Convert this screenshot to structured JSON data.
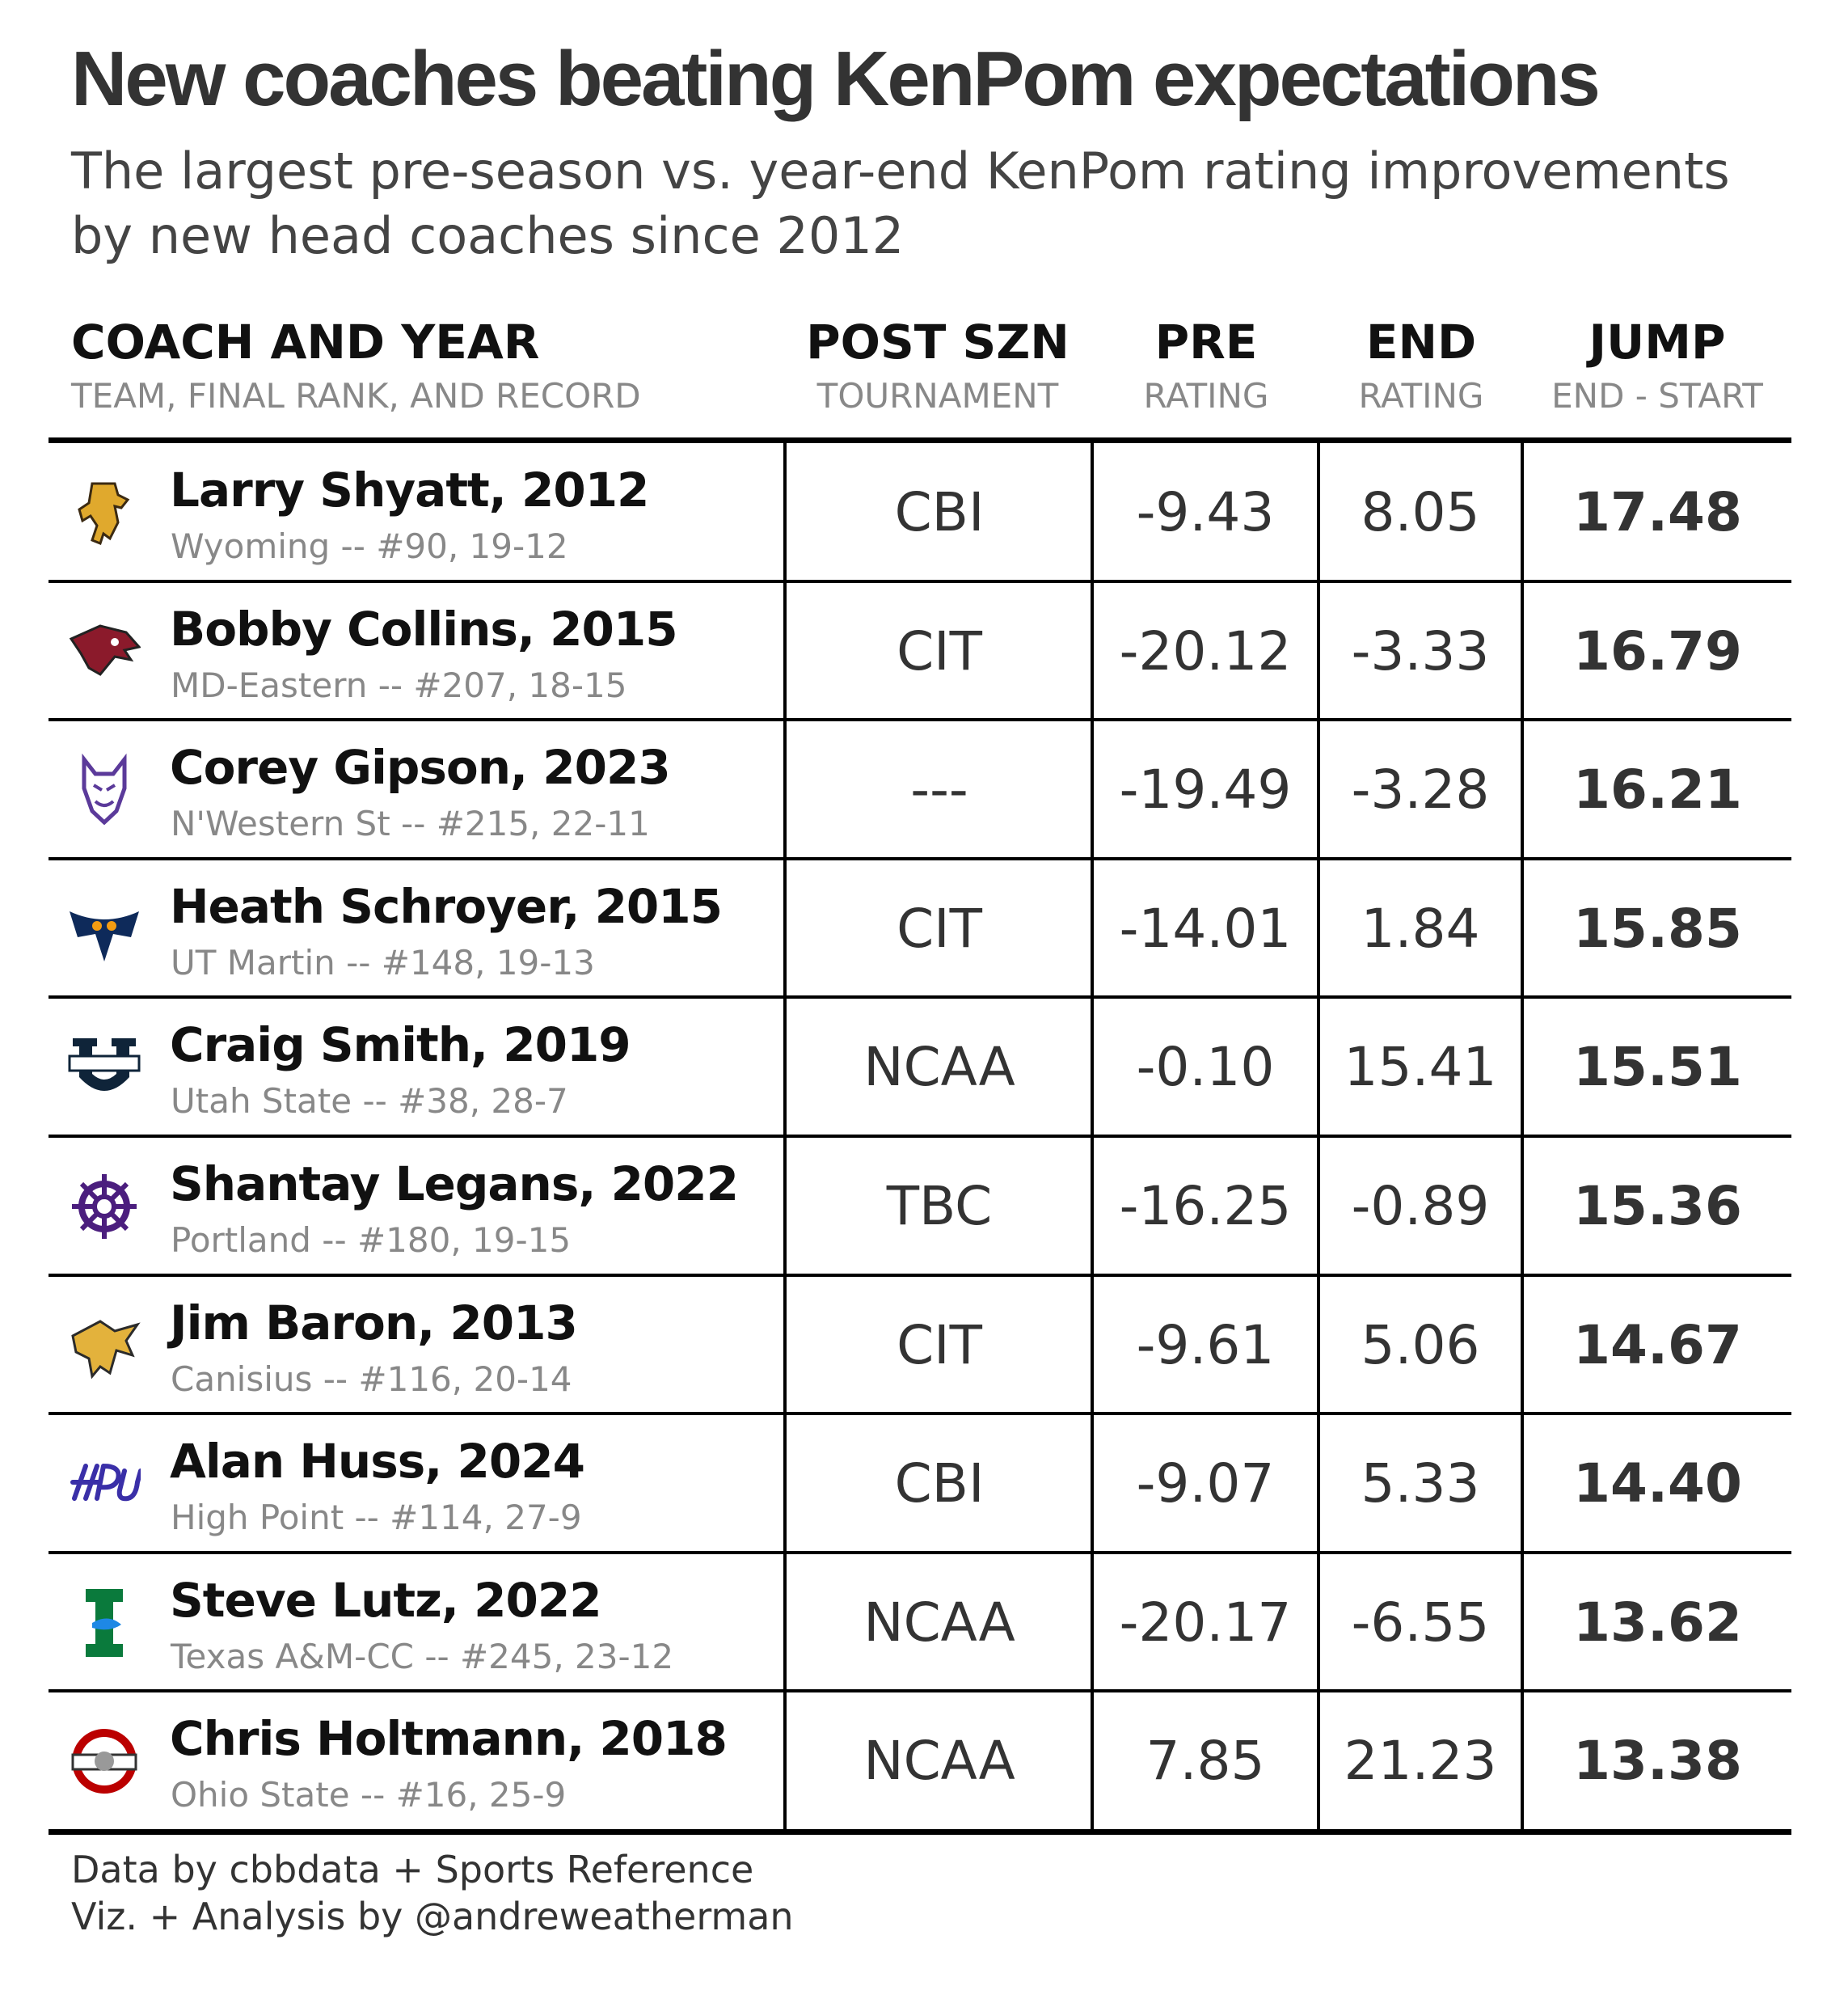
{
  "chart_data": {
    "type": "table",
    "title": "New coaches beating KenPom expectations",
    "subtitle_lines": [
      "The largest pre-season vs. year-end KenPom rating improvements",
      "by new head coaches since 2012"
    ],
    "columns": [
      {
        "key": "coach",
        "label": "COACH AND YEAR",
        "sublabel": "TEAM, FINAL RANK, AND RECORD"
      },
      {
        "key": "post",
        "label": "POST SZN",
        "sublabel": "TOURNAMENT"
      },
      {
        "key": "pre",
        "label": "PRE",
        "sublabel": "RATING"
      },
      {
        "key": "end",
        "label": "END",
        "sublabel": "RATING"
      },
      {
        "key": "jump",
        "label": "JUMP",
        "sublabel": "END - START"
      }
    ],
    "rows": [
      {
        "coach": "Larry Shyatt, 2012",
        "team": "Wyoming -- #90, 19-12",
        "post": "CBI",
        "pre": "-9.43",
        "end": "8.05",
        "jump": "17.48",
        "logo": "wyoming-cowboy-logo-icon",
        "color": "#E0A92D"
      },
      {
        "coach": "Bobby Collins, 2015",
        "team": "MD-Eastern -- #207, 18-15",
        "post": "CIT",
        "pre": "-20.12",
        "end": "-3.33",
        "jump": "16.79",
        "logo": "hawk-head-logo-icon",
        "color": "#8B1A2B"
      },
      {
        "coach": "Corey Gipson, 2023",
        "team": "N'Western St -- #215, 22-11",
        "post": "---",
        "pre": "-19.49",
        "end": "-3.28",
        "jump": "16.21",
        "logo": "demon-head-logo-icon",
        "color": "#5B3A9A"
      },
      {
        "coach": "Heath Schroyer, 2015",
        "team": "UT Martin -- #148, 19-13",
        "post": "CIT",
        "pre": "-14.01",
        "end": "1.84",
        "jump": "15.85",
        "logo": "skyhawk-logo-icon",
        "color": "#0E2A5A"
      },
      {
        "coach": "Craig Smith, 2019",
        "team": "Utah State -- #38, 28-7",
        "post": "NCAA",
        "pre": "-0.10",
        "end": "15.41",
        "jump": "15.51",
        "logo": "utah-state-u-logo-icon",
        "color": "#0F2439"
      },
      {
        "coach": "Shantay Legans, 2022",
        "team": "Portland -- #180, 19-15",
        "post": "TBC",
        "pre": "-16.25",
        "end": "-0.89",
        "jump": "15.36",
        "logo": "ship-wheel-logo-icon",
        "color": "#4B1E7E"
      },
      {
        "coach": "Jim Baron, 2013",
        "team": "Canisius -- #116, 20-14",
        "post": "CIT",
        "pre": "-9.61",
        "end": "5.06",
        "jump": "14.67",
        "logo": "griffin-logo-icon",
        "color": "#E3B23C"
      },
      {
        "coach": "Alan Huss, 2024",
        "team": "High Point -- #114, 27-9",
        "post": "CBI",
        "pre": "-9.07",
        "end": "5.33",
        "jump": "14.40",
        "logo": "hpu-script-logo-icon",
        "color": "#3A2FA8"
      },
      {
        "coach": "Steve Lutz, 2022",
        "team": "Texas A&M-CC -- #245, 23-12",
        "post": "NCAA",
        "pre": "-20.17",
        "end": "-6.55",
        "jump": "13.62",
        "logo": "islanders-i-logo-icon",
        "color": "#0A7A3C"
      },
      {
        "coach": "Chris Holtmann, 2018",
        "team": "Ohio State -- #16, 25-9",
        "post": "NCAA",
        "pre": "7.85",
        "end": "21.23",
        "jump": "13.38",
        "logo": "ohio-state-logo-icon",
        "color": "#BB0000"
      }
    ],
    "footer_lines": [
      "Data by cbbdata + Sports Reference",
      "Viz. + Analysis by @andreweatherman"
    ]
  }
}
